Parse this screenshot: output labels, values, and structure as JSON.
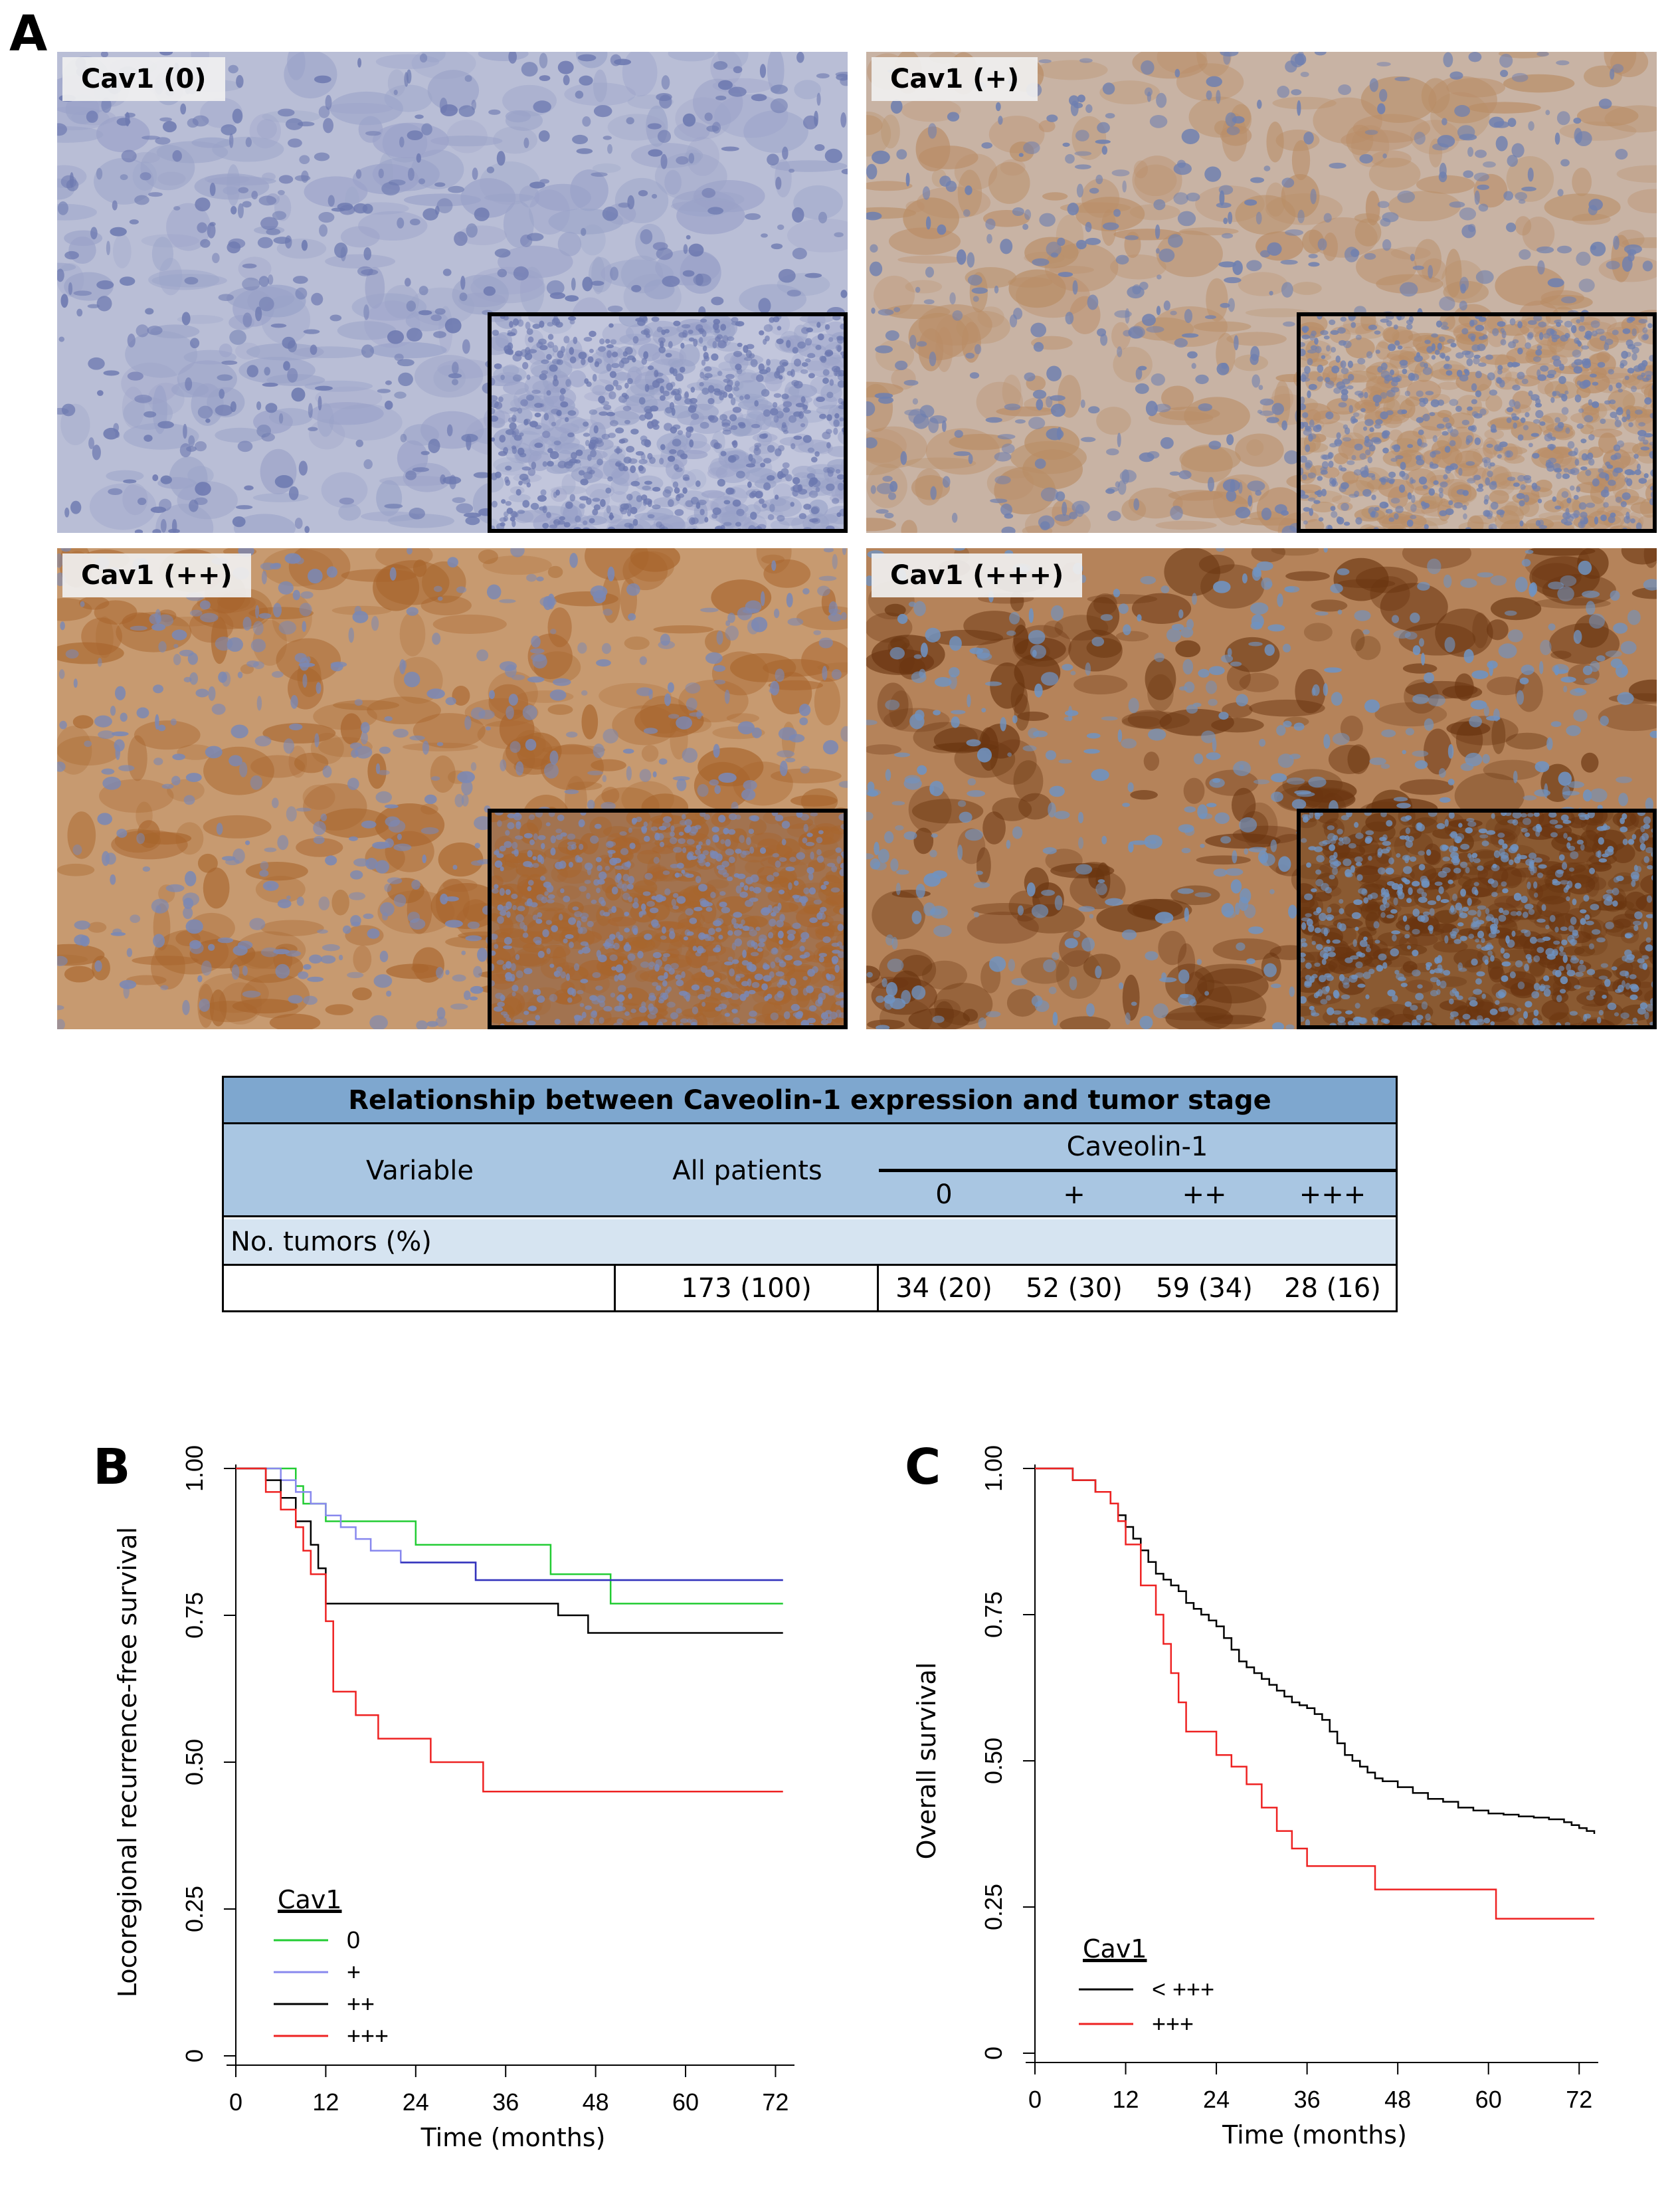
{
  "panels": {
    "A": "A",
    "B": "B",
    "C": "C"
  },
  "micrographs": [
    {
      "label": "Cav1 (0)",
      "base": "#b9bed6",
      "nucleus": "#6d79b0",
      "stain": "#9aa2c8",
      "inset_base": "#c2c6dc"
    },
    {
      "label": "Cav1 (+)",
      "base": "#c8b3a4",
      "nucleus": "#6e7fb0",
      "stain": "#b98d66",
      "inset_base": "#c9b6a8"
    },
    {
      "label": "Cav1 (++)",
      "base": "#c79a70",
      "nucleus": "#7a88b5",
      "stain": "#a8652d",
      "inset_base": "#a27350"
    },
    {
      "label": "Cav1 (+++)",
      "base": "#b5835a",
      "nucleus": "#6f93c2",
      "stain": "#6a3510",
      "inset_base": "#8a5a32"
    }
  ],
  "table": {
    "title": "Relationship between Caveolin-1 expression and tumor stage",
    "header_variable": "Variable",
    "header_all": "All patients",
    "header_group": "Caveolin-1",
    "levels": [
      "0",
      "+",
      "++",
      "+++"
    ],
    "row_label": "No. tumors (%)",
    "row_all": "173 (100)",
    "row_values": [
      "34 (20)",
      "52 (30)",
      "59 (34)",
      "28 (16)"
    ],
    "colors": {
      "title_bg": "#7ea7cf",
      "header_bg": "#a9c6e2",
      "row_bg": "#d6e4f1"
    }
  },
  "chart_data": [
    {
      "type": "line",
      "panel": "B",
      "step": true,
      "xlabel": "Time (months)",
      "ylabel": "Locoregional recurrence-free survival",
      "xticks": [
        "0",
        "12",
        "24",
        "36",
        "48",
        "60",
        "72"
      ],
      "yticks": [
        "0",
        "0.25",
        "0.50",
        "0.75",
        "1.00"
      ],
      "xlim": [
        0,
        74
      ],
      "ylim": [
        0,
        1
      ],
      "legend_title": "Cav1",
      "legend_position": "bottom-left",
      "series": [
        {
          "name": "0",
          "color": "#22cc33",
          "x": [
            0,
            8,
            9,
            12,
            24,
            42,
            50,
            73
          ],
          "y": [
            1.0,
            0.97,
            0.94,
            0.91,
            0.87,
            0.82,
            0.77,
            0.77
          ]
        },
        {
          "name": "+",
          "color": "#8888ee",
          "x": [
            0,
            6,
            8,
            10,
            12,
            14,
            16,
            18,
            22,
            32,
            73
          ],
          "y": [
            1.0,
            0.98,
            0.96,
            0.94,
            0.92,
            0.9,
            0.88,
            0.86,
            0.84,
            0.81,
            0.81
          ],
          "tail_color": "#3333bb",
          "tail_from": 20
        },
        {
          "name": "++",
          "color": "#000000",
          "x": [
            0,
            4,
            6,
            8,
            10,
            11,
            12,
            43,
            47,
            73
          ],
          "y": [
            1.0,
            0.98,
            0.95,
            0.91,
            0.87,
            0.83,
            0.77,
            0.75,
            0.72,
            0.72
          ]
        },
        {
          "name": "+++",
          "color": "#ee2222",
          "x": [
            0,
            4,
            6,
            8,
            9,
            10,
            12,
            13,
            16,
            19,
            26,
            33,
            73
          ],
          "y": [
            1.0,
            0.96,
            0.93,
            0.9,
            0.86,
            0.82,
            0.74,
            0.62,
            0.58,
            0.54,
            0.5,
            0.45,
            0.45
          ]
        }
      ]
    },
    {
      "type": "line",
      "panel": "C",
      "step": true,
      "xlabel": "Time (months)",
      "ylabel": "Overall survival",
      "xticks": [
        "0",
        "12",
        "24",
        "36",
        "48",
        "60",
        "72"
      ],
      "yticks": [
        "0",
        "0.25",
        "0.50",
        "0.75",
        "1.00"
      ],
      "xlim": [
        0,
        74
      ],
      "ylim": [
        0,
        1
      ],
      "legend_title": "Cav1",
      "legend_position": "bottom-left",
      "series": [
        {
          "name": "< +++",
          "color": "#000000",
          "x": [
            0,
            5,
            8,
            10,
            11,
            12,
            13,
            14,
            15,
            16,
            17,
            18,
            19,
            20,
            21,
            22,
            23,
            24,
            25,
            26,
            27,
            28,
            29,
            30,
            31,
            32,
            33,
            34,
            35,
            36,
            37,
            38,
            39,
            40,
            41,
            42,
            43,
            44,
            45,
            46,
            48,
            50,
            52,
            54,
            56,
            58,
            60,
            62,
            64,
            66,
            68,
            70,
            71,
            72,
            73,
            74
          ],
          "y": [
            1.0,
            0.98,
            0.96,
            0.94,
            0.92,
            0.9,
            0.88,
            0.86,
            0.84,
            0.82,
            0.81,
            0.8,
            0.79,
            0.77,
            0.76,
            0.75,
            0.74,
            0.73,
            0.71,
            0.69,
            0.67,
            0.66,
            0.65,
            0.64,
            0.63,
            0.62,
            0.61,
            0.6,
            0.595,
            0.59,
            0.58,
            0.57,
            0.55,
            0.53,
            0.51,
            0.5,
            0.49,
            0.48,
            0.47,
            0.465,
            0.455,
            0.445,
            0.435,
            0.43,
            0.42,
            0.415,
            0.41,
            0.408,
            0.405,
            0.403,
            0.4,
            0.395,
            0.39,
            0.385,
            0.38,
            0.375
          ]
        },
        {
          "name": "+++",
          "color": "#ee2222",
          "x": [
            0,
            5,
            8,
            10,
            11,
            12,
            14,
            16,
            17,
            18,
            19,
            20,
            24,
            26,
            28,
            30,
            32,
            34,
            36,
            45,
            61,
            74
          ],
          "y": [
            1.0,
            0.98,
            0.96,
            0.94,
            0.91,
            0.87,
            0.8,
            0.75,
            0.7,
            0.65,
            0.6,
            0.55,
            0.51,
            0.49,
            0.46,
            0.42,
            0.38,
            0.35,
            0.32,
            0.28,
            0.23,
            0.23
          ]
        }
      ]
    }
  ]
}
